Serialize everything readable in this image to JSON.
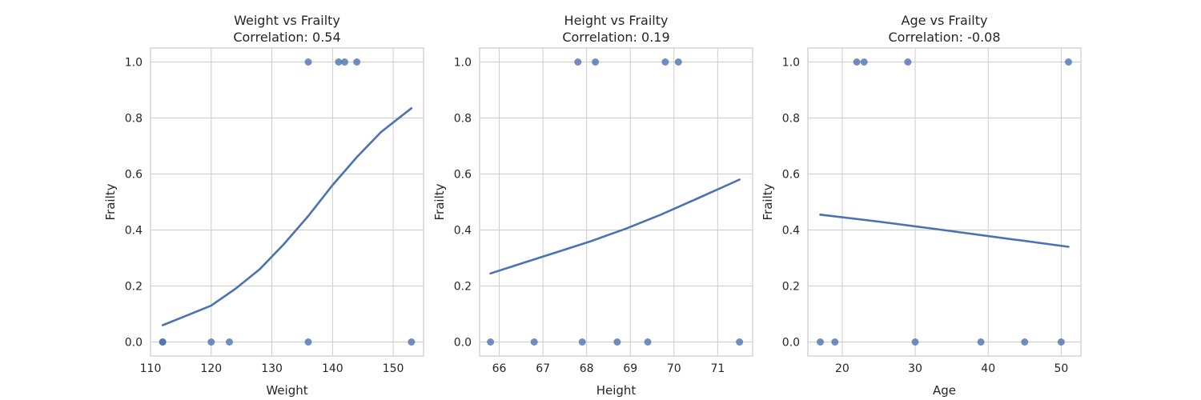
{
  "chart_data": [
    {
      "type": "scatter",
      "title": "Weight vs Frailty",
      "subtitle": "Correlation: 0.54",
      "xlabel": "Weight",
      "ylabel": "Frailty",
      "xlim": [
        110,
        155
      ],
      "ylim": [
        -0.05,
        1.05
      ],
      "x_ticks": [
        "110",
        "120",
        "130",
        "140",
        "150"
      ],
      "y_ticks": [
        "0.0",
        "0.2",
        "0.4",
        "0.6",
        "0.8",
        "1.0"
      ],
      "grid": true,
      "points": [
        {
          "x": 112,
          "y": 0
        },
        {
          "x": 112,
          "y": 0
        },
        {
          "x": 120,
          "y": 0
        },
        {
          "x": 123,
          "y": 0
        },
        {
          "x": 136,
          "y": 0
        },
        {
          "x": 153,
          "y": 0
        },
        {
          "x": 136,
          "y": 1
        },
        {
          "x": 141,
          "y": 1
        },
        {
          "x": 142,
          "y": 1
        },
        {
          "x": 144,
          "y": 1
        }
      ],
      "fit_line": [
        {
          "x": 112,
          "y": 0.06
        },
        {
          "x": 116,
          "y": 0.095
        },
        {
          "x": 120,
          "y": 0.13
        },
        {
          "x": 124,
          "y": 0.19
        },
        {
          "x": 128,
          "y": 0.26
        },
        {
          "x": 132,
          "y": 0.35
        },
        {
          "x": 136,
          "y": 0.45
        },
        {
          "x": 140,
          "y": 0.56
        },
        {
          "x": 144,
          "y": 0.66
        },
        {
          "x": 148,
          "y": 0.75
        },
        {
          "x": 153,
          "y": 0.835
        }
      ]
    },
    {
      "type": "scatter",
      "title": "Height vs Frailty",
      "subtitle": "Correlation: 0.19",
      "xlabel": "Height",
      "ylabel": "Frailty",
      "xlim": [
        65.55,
        71.8
      ],
      "ylim": [
        -0.05,
        1.05
      ],
      "x_ticks": [
        "66",
        "67",
        "68",
        "69",
        "70",
        "71"
      ],
      "y_ticks": [
        "0.0",
        "0.2",
        "0.4",
        "0.6",
        "0.8",
        "1.0"
      ],
      "grid": true,
      "points": [
        {
          "x": 65.8,
          "y": 0
        },
        {
          "x": 66.8,
          "y": 0
        },
        {
          "x": 67.9,
          "y": 0
        },
        {
          "x": 68.7,
          "y": 0
        },
        {
          "x": 69.4,
          "y": 0
        },
        {
          "x": 71.5,
          "y": 0
        },
        {
          "x": 67.8,
          "y": 1
        },
        {
          "x": 68.2,
          "y": 1
        },
        {
          "x": 69.8,
          "y": 1
        },
        {
          "x": 70.1,
          "y": 1
        }
      ],
      "fit_line": [
        {
          "x": 65.8,
          "y": 0.245
        },
        {
          "x": 66.5,
          "y": 0.28
        },
        {
          "x": 67.3,
          "y": 0.32
        },
        {
          "x": 68.1,
          "y": 0.36
        },
        {
          "x": 68.9,
          "y": 0.405
        },
        {
          "x": 69.7,
          "y": 0.455
        },
        {
          "x": 70.5,
          "y": 0.51
        },
        {
          "x": 71.5,
          "y": 0.58
        }
      ]
    },
    {
      "type": "scatter",
      "title": "Age vs Frailty",
      "subtitle": "Correlation: -0.08",
      "xlabel": "Age",
      "ylabel": "Frailty",
      "xlim": [
        15.3,
        52.7
      ],
      "ylim": [
        -0.05,
        1.05
      ],
      "x_ticks": [
        "20",
        "30",
        "40",
        "50"
      ],
      "y_ticks": [
        "0.0",
        "0.2",
        "0.4",
        "0.6",
        "0.8",
        "1.0"
      ],
      "grid": true,
      "points": [
        {
          "x": 17,
          "y": 0
        },
        {
          "x": 19,
          "y": 0
        },
        {
          "x": 30,
          "y": 0
        },
        {
          "x": 39,
          "y": 0
        },
        {
          "x": 45,
          "y": 0
        },
        {
          "x": 50,
          "y": 0
        },
        {
          "x": 22,
          "y": 1
        },
        {
          "x": 23,
          "y": 1
        },
        {
          "x": 29,
          "y": 1
        },
        {
          "x": 51,
          "y": 1
        }
      ],
      "fit_line": [
        {
          "x": 17,
          "y": 0.455
        },
        {
          "x": 25,
          "y": 0.43
        },
        {
          "x": 33,
          "y": 0.403
        },
        {
          "x": 41,
          "y": 0.375
        },
        {
          "x": 51,
          "y": 0.34
        }
      ]
    }
  ]
}
